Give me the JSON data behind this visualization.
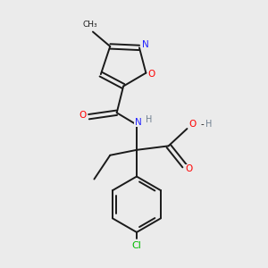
{
  "bg_color": "#ebebeb",
  "bond_color": "#1a1a1a",
  "N_color": "#2222ff",
  "O_color": "#ff0000",
  "Cl_color": "#00bb00",
  "H_color": "#708090",
  "figsize": [
    3.0,
    3.0
  ],
  "dpi": 100,
  "xlim": [
    0,
    10
  ],
  "ylim": [
    0,
    10
  ]
}
